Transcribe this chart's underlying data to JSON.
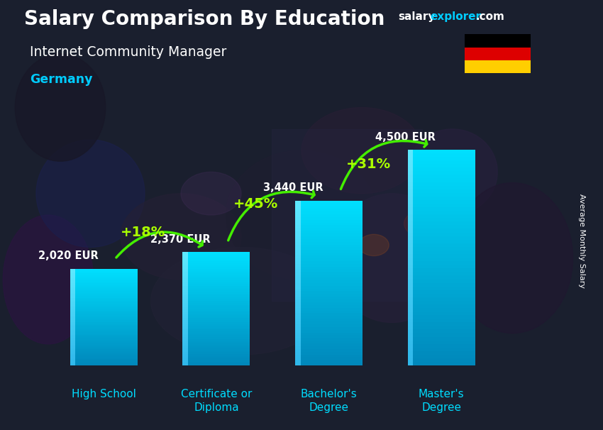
{
  "title": "Salary Comparison By Education",
  "subtitle": "Internet Community Manager",
  "country": "Germany",
  "ylabel": "Average Monthly Salary",
  "categories": [
    "High School",
    "Certificate or\nDiploma",
    "Bachelor's\nDegree",
    "Master's\nDegree"
  ],
  "values": [
    2020,
    2370,
    3440,
    4500
  ],
  "value_labels": [
    "2,020 EUR",
    "2,370 EUR",
    "3,440 EUR",
    "4,500 EUR"
  ],
  "pct_changes": [
    "+18%",
    "+45%",
    "+31%"
  ],
  "bar_color": "#00ccee",
  "bar_color_dark": "#007799",
  "bg_color": "#1a1f2e",
  "title_color": "#ffffff",
  "subtitle_color": "#ffffff",
  "country_color": "#00ccff",
  "value_color": "#ffffff",
  "pct_color": "#aaff00",
  "arrow_color": "#44ee00",
  "xlabel_color": "#00ddff",
  "flag_colors": [
    "#000000",
    "#DD0000",
    "#FFCE00"
  ],
  "ylim_max": 5200,
  "bar_bottom": 0,
  "fig_width": 8.5,
  "fig_height": 6.06,
  "dpi": 100
}
